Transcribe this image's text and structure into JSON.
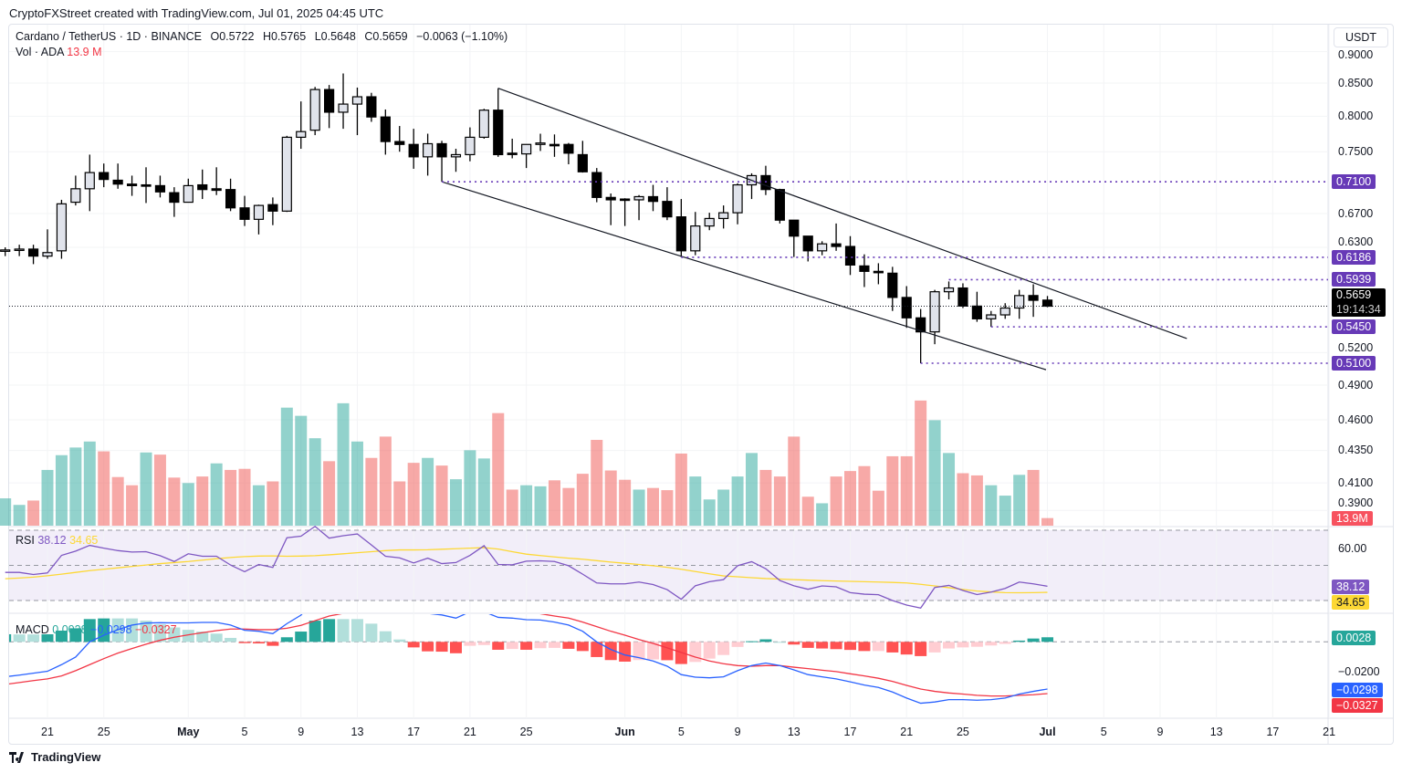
{
  "credit": "CryptoFXStreet created with TradingView.com, Jul 01, 2025 04:45 UTC",
  "legend": {
    "symbol": "Cardano / TetherUS · 1D · BINANCE",
    "open": "O0.5722",
    "high": "H0.5765",
    "low": "L0.5648",
    "close": "C0.5659",
    "change": "−0.0063 (−1.10%)",
    "vol_label": "Vol · ADA",
    "vol_value": "13.9 M"
  },
  "currency_button": "USDT",
  "footer_brand": "TradingView",
  "colors": {
    "up_vol": "#26a69a",
    "down_vol": "#ef5350",
    "level": "#673ab7",
    "rsi": "#7e57c2",
    "rsi_ma": "#fdd835",
    "macd": "#2962ff",
    "signal": "#f23645"
  },
  "chart_data": {
    "type": "candlestick",
    "scale": "log",
    "price_axis_labels": [
      "0.9000",
      "0.8500",
      "0.8000",
      "0.7500",
      "0.6700",
      "0.6300",
      "0.5200",
      "0.4900",
      "0.4600",
      "0.4350",
      "0.4100",
      "0.3900"
    ],
    "x_ticks": [
      {
        "i": 3,
        "label": "21"
      },
      {
        "i": 7,
        "label": "25"
      },
      {
        "i": 13,
        "label": "May"
      },
      {
        "i": 17,
        "label": "5"
      },
      {
        "i": 21,
        "label": "9"
      },
      {
        "i": 25,
        "label": "13"
      },
      {
        "i": 29,
        "label": "17"
      },
      {
        "i": 33,
        "label": "21"
      },
      {
        "i": 37,
        "label": "25"
      },
      {
        "i": 44,
        "label": "Jun"
      },
      {
        "i": 48,
        "label": "5"
      },
      {
        "i": 52,
        "label": "9"
      },
      {
        "i": 56,
        "label": "13"
      },
      {
        "i": 60,
        "label": "17"
      },
      {
        "i": 64,
        "label": "21"
      },
      {
        "i": 68,
        "label": "25"
      },
      {
        "i": 74,
        "label": "Jul"
      },
      {
        "i": 78,
        "label": "5"
      },
      {
        "i": 82,
        "label": "9"
      },
      {
        "i": 86,
        "label": "13"
      },
      {
        "i": 90,
        "label": "17"
      },
      {
        "i": 94,
        "label": "21"
      }
    ],
    "ohlc": [
      [
        0.626,
        0.63,
        0.62,
        0.627
      ],
      [
        0.628,
        0.633,
        0.62,
        0.628
      ],
      [
        0.628,
        0.633,
        0.611,
        0.62
      ],
      [
        0.62,
        0.651,
        0.617,
        0.624
      ],
      [
        0.626,
        0.687,
        0.617,
        0.682
      ],
      [
        0.684,
        0.718,
        0.68,
        0.701
      ],
      [
        0.701,
        0.746,
        0.673,
        0.722
      ],
      [
        0.722,
        0.734,
        0.703,
        0.713
      ],
      [
        0.712,
        0.734,
        0.701,
        0.707
      ],
      [
        0.707,
        0.718,
        0.692,
        0.705
      ],
      [
        0.706,
        0.729,
        0.683,
        0.705
      ],
      [
        0.705,
        0.718,
        0.69,
        0.697
      ],
      [
        0.696,
        0.703,
        0.666,
        0.684
      ],
      [
        0.684,
        0.714,
        0.684,
        0.705
      ],
      [
        0.706,
        0.726,
        0.688,
        0.7
      ],
      [
        0.701,
        0.729,
        0.693,
        0.699
      ],
      [
        0.7,
        0.714,
        0.673,
        0.677
      ],
      [
        0.677,
        0.692,
        0.655,
        0.663
      ],
      [
        0.663,
        0.681,
        0.645,
        0.68
      ],
      [
        0.681,
        0.69,
        0.656,
        0.673
      ],
      [
        0.673,
        0.772,
        0.672,
        0.77
      ],
      [
        0.77,
        0.822,
        0.754,
        0.778
      ],
      [
        0.78,
        0.844,
        0.773,
        0.84
      ],
      [
        0.84,
        0.847,
        0.783,
        0.806
      ],
      [
        0.806,
        0.865,
        0.782,
        0.818
      ],
      [
        0.818,
        0.843,
        0.773,
        0.829
      ],
      [
        0.829,
        0.835,
        0.792,
        0.799
      ],
      [
        0.799,
        0.81,
        0.746,
        0.764
      ],
      [
        0.764,
        0.786,
        0.75,
        0.76
      ],
      [
        0.76,
        0.782,
        0.727,
        0.743
      ],
      [
        0.743,
        0.775,
        0.718,
        0.761
      ],
      [
        0.761,
        0.765,
        0.71,
        0.743
      ],
      [
        0.743,
        0.754,
        0.723,
        0.746
      ],
      [
        0.746,
        0.784,
        0.737,
        0.77
      ],
      [
        0.77,
        0.811,
        0.768,
        0.809
      ],
      [
        0.809,
        0.842,
        0.743,
        0.746
      ],
      [
        0.748,
        0.768,
        0.741,
        0.747
      ],
      [
        0.747,
        0.76,
        0.728,
        0.76
      ],
      [
        0.76,
        0.775,
        0.751,
        0.762
      ],
      [
        0.76,
        0.774,
        0.743,
        0.759
      ],
      [
        0.76,
        0.762,
        0.733,
        0.748
      ],
      [
        0.746,
        0.765,
        0.722,
        0.723
      ],
      [
        0.722,
        0.728,
        0.684,
        0.69
      ],
      [
        0.69,
        0.695,
        0.656,
        0.687
      ],
      [
        0.688,
        0.689,
        0.655,
        0.687
      ],
      [
        0.687,
        0.693,
        0.662,
        0.691
      ],
      [
        0.691,
        0.706,
        0.673,
        0.685
      ],
      [
        0.685,
        0.703,
        0.662,
        0.666
      ],
      [
        0.666,
        0.688,
        0.619,
        0.626
      ],
      [
        0.626,
        0.672,
        0.621,
        0.655
      ],
      [
        0.655,
        0.671,
        0.65,
        0.664
      ],
      [
        0.664,
        0.68,
        0.652,
        0.671
      ],
      [
        0.671,
        0.708,
        0.657,
        0.706
      ],
      [
        0.706,
        0.721,
        0.688,
        0.718
      ],
      [
        0.718,
        0.731,
        0.693,
        0.7
      ],
      [
        0.7,
        0.701,
        0.658,
        0.662
      ],
      [
        0.662,
        0.662,
        0.619,
        0.643
      ],
      [
        0.643,
        0.643,
        0.614,
        0.626
      ],
      [
        0.626,
        0.637,
        0.621,
        0.634
      ],
      [
        0.634,
        0.658,
        0.626,
        0.631
      ],
      [
        0.631,
        0.643,
        0.599,
        0.61
      ],
      [
        0.609,
        0.622,
        0.586,
        0.603
      ],
      [
        0.603,
        0.612,
        0.589,
        0.602
      ],
      [
        0.601,
        0.608,
        0.561,
        0.575
      ],
      [
        0.575,
        0.587,
        0.544,
        0.554
      ],
      [
        0.554,
        0.563,
        0.51,
        0.54
      ],
      [
        0.54,
        0.583,
        0.528,
        0.581
      ],
      [
        0.581,
        0.592,
        0.573,
        0.585
      ],
      [
        0.585,
        0.59,
        0.564,
        0.566
      ],
      [
        0.566,
        0.581,
        0.55,
        0.553
      ],
      [
        0.553,
        0.561,
        0.545,
        0.557
      ],
      [
        0.557,
        0.569,
        0.553,
        0.564
      ],
      [
        0.564,
        0.583,
        0.553,
        0.577
      ],
      [
        0.577,
        0.589,
        0.555,
        0.572
      ],
      [
        0.5722,
        0.5765,
        0.5648,
        0.5659
      ]
    ],
    "volume_m": [
      50,
      38,
      46,
      102,
      129,
      143,
      154,
      136,
      89,
      74,
      134,
      130,
      88,
      78,
      90,
      114,
      102,
      104,
      74,
      81,
      216,
      201,
      160,
      118,
      224,
      154,
      124,
      163,
      81,
      115,
      124,
      110,
      85,
      138,
      123,
      206,
      66,
      74,
      72,
      83,
      69,
      95,
      157,
      101,
      84,
      66,
      69,
      65,
      132,
      90,
      48,
      66,
      90,
      133,
      102,
      90,
      163,
      53,
      41,
      90,
      100,
      109,
      64,
      127,
      127,
      229,
      193,
      133,
      96,
      92,
      74,
      55,
      93,
      102,
      13.9
    ],
    "volume_dir": [
      "u",
      "u",
      "d",
      "u",
      "u",
      "u",
      "u",
      "d",
      "d",
      "d",
      "u",
      "d",
      "d",
      "u",
      "d",
      "u",
      "d",
      "d",
      "u",
      "d",
      "u",
      "u",
      "u",
      "d",
      "u",
      "u",
      "d",
      "d",
      "d",
      "d",
      "u",
      "d",
      "u",
      "u",
      "u",
      "d",
      "d",
      "u",
      "u",
      "d",
      "d",
      "d",
      "d",
      "d",
      "d",
      "u",
      "d",
      "d",
      "d",
      "u",
      "u",
      "u",
      "u",
      "u",
      "d",
      "d",
      "d",
      "d",
      "u",
      "d",
      "d",
      "d",
      "d",
      "d",
      "d",
      "d",
      "u",
      "u",
      "d",
      "d",
      "u",
      "u",
      "u",
      "d",
      "d"
    ],
    "levels": [
      {
        "price": 0.71,
        "label": "0.7100",
        "from_i": 31
      },
      {
        "price": 0.6186,
        "label": "0.6186",
        "from_i": 48
      },
      {
        "price": 0.5939,
        "label": "0.5939",
        "from_i": 67
      },
      {
        "price": 0.545,
        "label": "0.5450",
        "from_i": 70
      },
      {
        "price": 0.51,
        "label": "0.5100",
        "from_i": 65
      }
    ],
    "channel": {
      "upper": [
        {
          "i": 35,
          "price": 0.842
        },
        {
          "i": 83.9,
          "price": 0.5335
        }
      ],
      "lower": [
        {
          "i": 31,
          "price": 0.71
        },
        {
          "i": 73.9,
          "price": 0.504
        }
      ]
    },
    "last_price": {
      "label": "0.5659",
      "countdown": "19:14:34"
    },
    "volume_badge": "13.9M",
    "rsi": {
      "label": "RSI",
      "value_label": "38.12",
      "ma_label": "34.65",
      "axis_label": "60.00",
      "bands": [
        70,
        50,
        30
      ],
      "values": [
        46.0,
        46.0,
        44.8,
        45.7,
        55.7,
        58.1,
        61.4,
        59.8,
        58.4,
        57.6,
        57.8,
        55.5,
        52.2,
        56.6,
        55.2,
        55.2,
        50.2,
        46.4,
        50.5,
        48.8,
        65.7,
        66.6,
        72.2,
        65.5,
        66.9,
        67.9,
        61.6,
        55.2,
        54.3,
        51.4,
        54.1,
        51.0,
        51.6,
        55.7,
        61.2,
        50.5,
        50.3,
        52.4,
        52.6,
        52.2,
        49.8,
        45.0,
        40.0,
        39.5,
        39.5,
        40.5,
        39.1,
        36.2,
        30.7,
        38.4,
        40.7,
        41.9,
        49.8,
        52.1,
        48.1,
        41.4,
        38.4,
        36.4,
        38.3,
        37.8,
        34.5,
        33.6,
        33.3,
        30.0,
        27.4,
        25.7,
        37.4,
        38.6,
        35.7,
        33.4,
        34.8,
        36.9,
        40.5,
        39.5,
        38.12
      ],
      "ma": [
        42.4,
        42.8,
        43.3,
        44.1,
        45.0,
        46.0,
        47.0,
        47.8,
        48.6,
        49.4,
        50.2,
        51.0,
        51.6,
        52.2,
        53.0,
        53.8,
        54.5,
        55.0,
        55.3,
        55.4,
        55.2,
        55.3,
        55.5,
        56.0,
        56.6,
        57.2,
        57.8,
        58.4,
        58.8,
        58.8,
        58.9,
        59.2,
        59.5,
        59.8,
        60.1,
        59.3,
        57.8,
        56.4,
        55.6,
        54.8,
        54.1,
        53.5,
        52.7,
        51.9,
        51.2,
        50.5,
        49.8,
        48.9,
        47.8,
        46.5,
        45.2,
        44.0,
        43.5,
        43.0,
        42.5,
        42.2,
        41.9,
        41.6,
        41.3,
        41.1,
        40.9,
        40.7,
        40.5,
        40.3,
        40.0,
        39.2,
        38.3,
        37.3,
        36.3,
        35.4,
        34.9,
        34.5,
        34.4,
        34.5,
        34.65
      ]
    },
    "macd": {
      "label": "MACD",
      "hist_label": "0.0028",
      "macd_label": "−0.0298",
      "signal_label": "−0.0327",
      "axis_label": "−0.0200",
      "macd": [
        -0.0221,
        -0.021,
        -0.0198,
        -0.0186,
        -0.0144,
        -0.0096,
        0.0,
        0.0042,
        0.0077,
        0.0106,
        0.0119,
        0.0121,
        0.012,
        0.012,
        0.0123,
        0.0123,
        0.0106,
        0.0073,
        0.0067,
        0.0052,
        0.0115,
        0.0169,
        0.0268,
        0.0307,
        0.0324,
        0.0344,
        0.034,
        0.0307,
        0.026,
        0.021,
        0.018,
        0.017,
        0.015,
        0.019,
        0.019,
        0.0155,
        0.015,
        0.014,
        0.0138,
        0.0125,
        0.0106,
        0.0067,
        0.0,
        -0.0048,
        -0.0083,
        -0.01,
        -0.0121,
        -0.0154,
        -0.0207,
        -0.0223,
        -0.0227,
        -0.0221,
        -0.0182,
        -0.015,
        -0.0134,
        -0.015,
        -0.0177,
        -0.0207,
        -0.0221,
        -0.0234,
        -0.0253,
        -0.0273,
        -0.0288,
        -0.0317,
        -0.0355,
        -0.0388,
        -0.038,
        -0.0365,
        -0.0365,
        -0.0369,
        -0.0365,
        -0.0355,
        -0.033,
        -0.0313,
        -0.0298
      ],
      "signal": [
        -0.0269,
        -0.0257,
        -0.0245,
        -0.0234,
        -0.0215,
        -0.0182,
        -0.0144,
        -0.0106,
        -0.0071,
        -0.0042,
        -0.0015,
        0.001,
        0.0029,
        0.0044,
        0.0058,
        0.0071,
        0.0081,
        0.0081,
        0.0077,
        0.0077,
        0.0086,
        0.0104,
        0.0134,
        0.0163,
        0.018,
        0.02,
        0.0225,
        0.024,
        0.0245,
        0.0245,
        0.024,
        0.0232,
        0.0222,
        0.0215,
        0.021,
        0.0205,
        0.0195,
        0.019,
        0.0178,
        0.0163,
        0.015,
        0.0125,
        0.0096,
        0.0067,
        0.0042,
        0.0015,
        -0.001,
        -0.0038,
        -0.0067,
        -0.0096,
        -0.0121,
        -0.0138,
        -0.015,
        -0.0154,
        -0.015,
        -0.015,
        -0.016,
        -0.0169,
        -0.0179,
        -0.0188,
        -0.0202,
        -0.0215,
        -0.023,
        -0.025,
        -0.0275,
        -0.0298,
        -0.0313,
        -0.0323,
        -0.033,
        -0.0338,
        -0.0342,
        -0.0342,
        -0.0338,
        -0.0334,
        -0.0327
      ]
    }
  }
}
